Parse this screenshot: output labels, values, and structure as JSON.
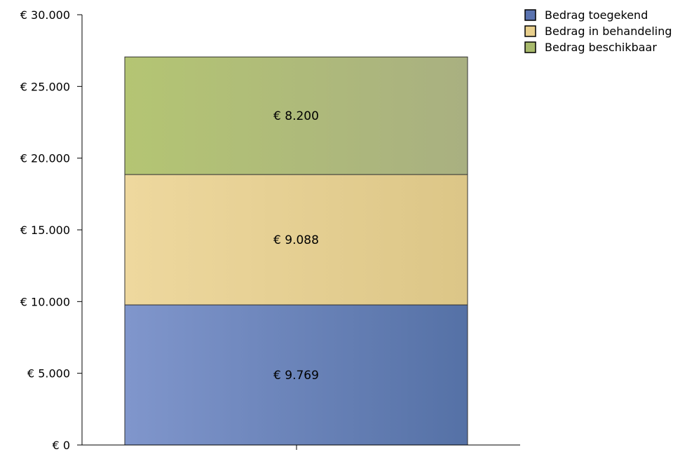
{
  "chart_data": {
    "type": "bar",
    "stacked": true,
    "categories": [
      ""
    ],
    "series": [
      {
        "name": "Bedrag toegekend",
        "values": [
          9769
        ],
        "label": "€ 9.769",
        "color_start": "#8096cc",
        "color_end": "#5571a6",
        "legend_color": "#5a73b0"
      },
      {
        "name": "Bedrag in behandeling",
        "values": [
          9088
        ],
        "label": "€ 9.088",
        "color_start": "#eed89e",
        "color_end": "#dcc687",
        "legend_color": "#e8cf8c"
      },
      {
        "name": "Bedrag beschikbaar",
        "values": [
          8200
        ],
        "label": "€ 8.200",
        "color_start": "#b4c573",
        "color_end": "#a9b081",
        "legend_color": "#a8ba6c"
      }
    ],
    "ylim": [
      0,
      30000
    ],
    "yticks": [
      0,
      5000,
      10000,
      15000,
      20000,
      25000,
      30000
    ],
    "ytick_labels": [
      "€ 0",
      "€ 5.000",
      "€ 10.000",
      "€ 15.000",
      "€ 20.000",
      "€ 25.000",
      "€ 30.000"
    ],
    "grid": false,
    "legend_position": "top-right"
  }
}
